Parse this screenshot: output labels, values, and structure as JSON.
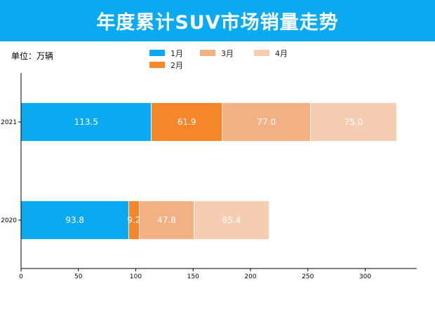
{
  "colors": {
    "title_bar": "#0aaaf0",
    "series": [
      "#0aaaf0",
      "#f5862a",
      "#f2b084",
      "#f5cdb0"
    ]
  },
  "header": {
    "title": "年度累计SUV市场销量走势"
  },
  "unit_label": "单位：万辆",
  "chart_data": {
    "type": "bar",
    "orientation": "horizontal",
    "stacked": true,
    "categories": [
      "2021",
      "2020"
    ],
    "series": [
      {
        "name": "1月",
        "values": [
          113.5,
          93.8
        ]
      },
      {
        "name": "2月",
        "values": [
          61.9,
          9.2
        ]
      },
      {
        "name": "3月",
        "values": [
          77.0,
          47.8
        ]
      },
      {
        "name": "4月",
        "values": [
          75.0,
          65.4
        ]
      }
    ],
    "data_labels": [
      [
        "113.5",
        "93.8"
      ],
      [
        "61.9",
        "9.2"
      ],
      [
        "77.0",
        "47.8"
      ],
      [
        "75.0",
        "65.4"
      ]
    ],
    "xticks": [
      0,
      50,
      100,
      150,
      200,
      250,
      300
    ],
    "xlim": [
      0,
      345
    ],
    "grid": false,
    "legend_position": "top"
  }
}
